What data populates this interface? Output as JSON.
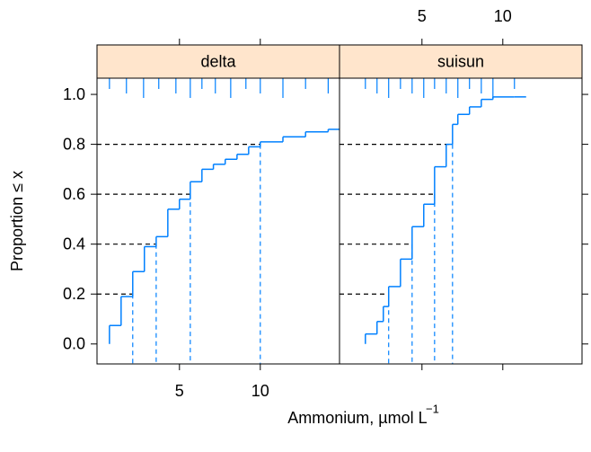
{
  "chart_data": {
    "type": "ecdf",
    "xlabel": "Ammonium,  µmol L",
    "xlabel_sup": "−1",
    "ylabel": "Proportion ≤ x",
    "xlim": [
      -0.1,
      14.9
    ],
    "ylim": [
      -0.08,
      1.065
    ],
    "xticks": [
      5,
      10
    ],
    "yticks": [
      {
        "value": 0,
        "label": "0.0"
      },
      {
        "value": 0.2,
        "label": "0.2"
      },
      {
        "value": 0.4,
        "label": "0.4"
      },
      {
        "value": 0.6,
        "label": "0.6"
      },
      {
        "value": 0.8,
        "label": "0.8"
      },
      {
        "value": 1,
        "label": "1.0"
      }
    ],
    "color": "#0080ff",
    "strip_color": "#ffe5cc",
    "quantile_probs": [
      0.2,
      0.4,
      0.6,
      0.8
    ],
    "panels": [
      {
        "name": "delta",
        "x": [
          0.67,
          1.39,
          2.11,
          2.83,
          3.56,
          4.28,
          5.0,
          5.67,
          6.39,
          7.1,
          7.83,
          8.56,
          9.28,
          10.0,
          11.4,
          12.8,
          14.2
        ],
        "values": [
          0.074,
          0.19,
          0.29,
          0.39,
          0.43,
          0.54,
          0.58,
          0.65,
          0.7,
          0.72,
          0.74,
          0.76,
          0.79,
          0.81,
          0.83,
          0.85,
          0.86
        ],
        "rug": [
          0.67,
          1.72,
          2.78,
          3.72,
          4.78,
          5.67,
          6.39,
          7.22,
          8.17,
          9.11,
          10.0,
          11.4,
          12.8,
          14.2
        ],
        "quantiles": [
          2.11,
          3.56,
          5.67,
          10.0
        ]
      },
      {
        "name": "suisun",
        "x": [
          1.5,
          2.22,
          2.61,
          2.94,
          3.67,
          4.39,
          5.11,
          5.78,
          6.5,
          6.89,
          7.22,
          7.94,
          8.67,
          9.39,
          10.72
        ],
        "values": [
          0.04,
          0.09,
          0.15,
          0.23,
          0.34,
          0.47,
          0.56,
          0.71,
          0.8,
          0.88,
          0.92,
          0.95,
          0.98,
          0.99,
          0.99
        ],
        "rug": [
          1.5,
          2.22,
          2.94,
          3.67,
          4.39,
          5.11,
          5.78,
          6.5,
          7.22,
          7.94,
          8.67,
          9.39,
          10.72
        ],
        "quantiles": [
          2.94,
          4.39,
          5.78,
          6.89
        ]
      }
    ]
  }
}
